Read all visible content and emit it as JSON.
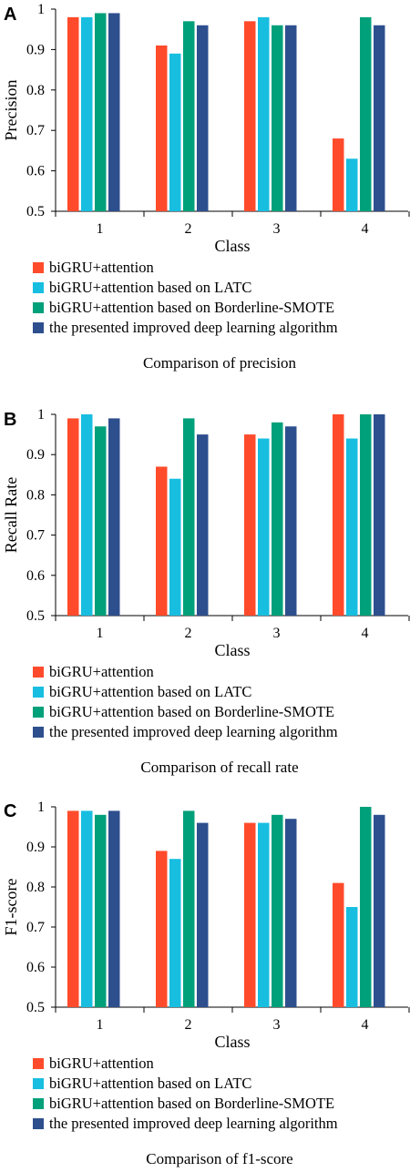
{
  "colors": [
    "#FF4B2B",
    "#17BEE0",
    "#00A07A",
    "#2E4F8E"
  ],
  "chart_data": [
    {
      "type": "bar",
      "panel": "A",
      "title": "Comparison of precision",
      "xlabel": "Class",
      "ylabel": "Precision",
      "ylim": [
        0.5,
        1
      ],
      "yticks": [
        "0.5",
        "0.6",
        "0.7",
        "0.8",
        "0.9",
        "1"
      ],
      "categories": [
        "1",
        "2",
        "3",
        "4"
      ],
      "series": [
        {
          "name": "biGRU+attention",
          "values": [
            0.98,
            0.91,
            0.97,
            0.68
          ]
        },
        {
          "name": "biGRU+attention based on LATC",
          "values": [
            0.98,
            0.89,
            0.98,
            0.63
          ]
        },
        {
          "name": "biGRU+attention based on Borderline-SMOTE",
          "values": [
            0.99,
            0.97,
            0.96,
            0.98
          ]
        },
        {
          "name": "the presented improved deep learning algorithm",
          "values": [
            0.99,
            0.96,
            0.96,
            0.96
          ]
        }
      ],
      "grid": false,
      "legend": "bottom"
    },
    {
      "type": "bar",
      "panel": "B",
      "title": "Comparison of recall rate",
      "xlabel": "Class",
      "ylabel": "Recall Rate",
      "ylim": [
        0.5,
        1
      ],
      "yticks": [
        "0.5",
        "0.6",
        "0.7",
        "0.8",
        "0.9",
        "1"
      ],
      "categories": [
        "1",
        "2",
        "3",
        "4"
      ],
      "series": [
        {
          "name": "biGRU+attention",
          "values": [
            0.99,
            0.87,
            0.95,
            1.0
          ]
        },
        {
          "name": "biGRU+attention based on LATC",
          "values": [
            1.0,
            0.84,
            0.94,
            0.94
          ]
        },
        {
          "name": "biGRU+attention based on Borderline-SMOTE",
          "values": [
            0.97,
            0.99,
            0.98,
            1.0
          ]
        },
        {
          "name": "the presented improved deep learning algorithm",
          "values": [
            0.99,
            0.95,
            0.97,
            1.0
          ]
        }
      ],
      "grid": false,
      "legend": "bottom"
    },
    {
      "type": "bar",
      "panel": "C",
      "title": "Comparison of f1-score",
      "xlabel": "Class",
      "ylabel": "F1-score",
      "ylim": [
        0.5,
        1
      ],
      "yticks": [
        "0.5",
        "0.6",
        "0.7",
        "0.8",
        "0.9",
        "1"
      ],
      "categories": [
        "1",
        "2",
        "3",
        "4"
      ],
      "series": [
        {
          "name": "biGRU+attention",
          "values": [
            0.99,
            0.89,
            0.96,
            0.81
          ]
        },
        {
          "name": "biGRU+attention based on LATC",
          "values": [
            0.99,
            0.87,
            0.96,
            0.75
          ]
        },
        {
          "name": "biGRU+attention based on Borderline-SMOTE",
          "values": [
            0.98,
            0.99,
            0.98,
            1.0
          ]
        },
        {
          "name": "the presented improved deep learning algorithm",
          "values": [
            0.99,
            0.96,
            0.97,
            0.98
          ]
        }
      ],
      "grid": false,
      "legend": "bottom"
    }
  ]
}
